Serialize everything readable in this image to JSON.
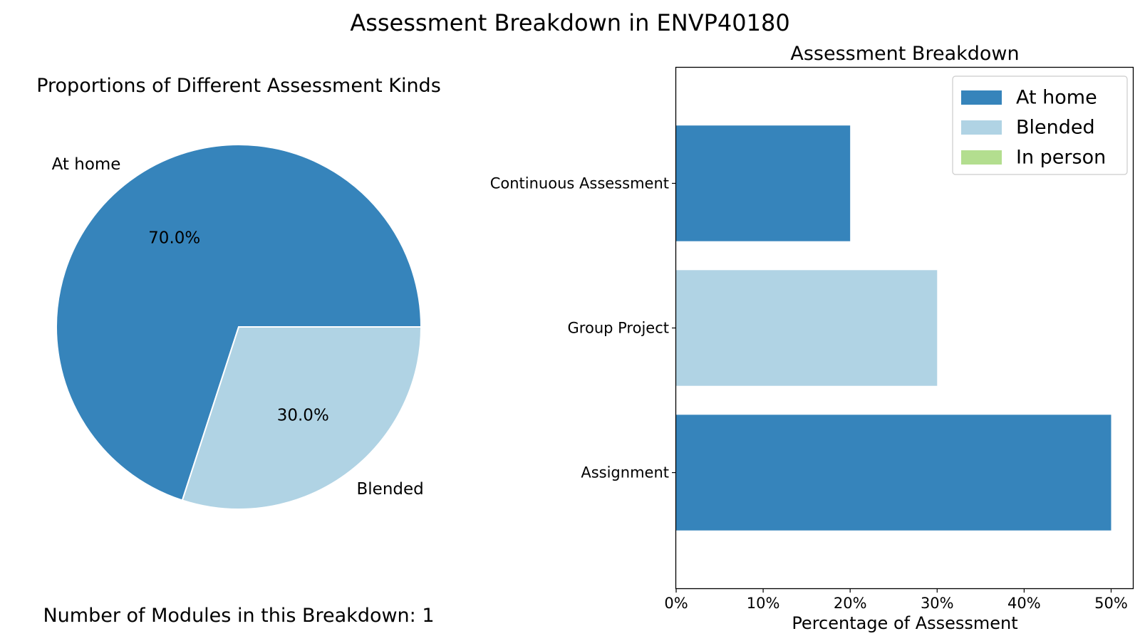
{
  "figure": {
    "title": "Assessment Breakdown in ENVP40180",
    "footnote": "Number of Modules in this Breakdown: 1"
  },
  "chart_data": [
    {
      "type": "pie",
      "title": "Proportions of Different Assessment Kinds",
      "slices": [
        {
          "label": "At home",
          "value": 70.0,
          "pct_label": "70.0%",
          "color": "#3684bb"
        },
        {
          "label": "Blended",
          "value": 30.0,
          "pct_label": "30.0%",
          "color": "#b0d3e4"
        }
      ],
      "start_angle_deg": 0,
      "direction": "counterclockwise"
    },
    {
      "type": "bar",
      "orientation": "horizontal",
      "title": "Assessment Breakdown",
      "xlabel": "Percentage of Assessment",
      "ylabel": "",
      "xlim": [
        0,
        52.5
      ],
      "xticks": [
        0,
        10,
        20,
        30,
        40,
        50
      ],
      "xtick_labels": [
        "0%",
        "10%",
        "20%",
        "30%",
        "40%",
        "50%"
      ],
      "categories": [
        "Continuous Assessment",
        "Group Project",
        "Assignment"
      ],
      "values": [
        20,
        30,
        50
      ],
      "bar_kinds": [
        "At home",
        "Blended",
        "At home"
      ],
      "legend": {
        "placement": "top-right",
        "entries": [
          {
            "label": "At home",
            "color": "#3684bb"
          },
          {
            "label": "Blended",
            "color": "#b0d3e4"
          },
          {
            "label": "In person",
            "color": "#b3de8f"
          }
        ]
      }
    }
  ]
}
